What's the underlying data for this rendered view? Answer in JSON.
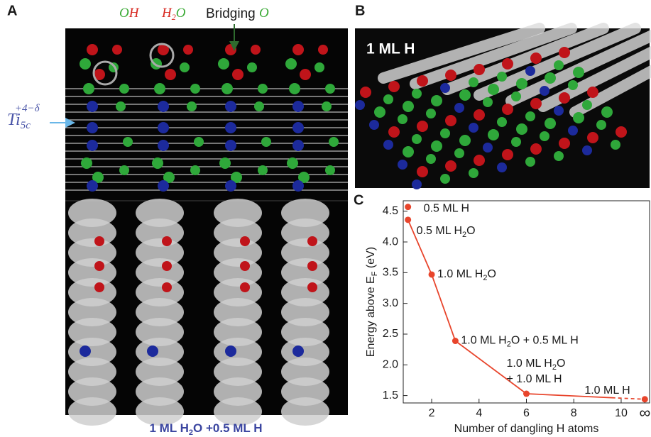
{
  "figure": {
    "panel_a": "A",
    "panel_b": "B",
    "panel_c": "C",
    "oh": [
      "O",
      "H"
    ],
    "h2o": [
      "H",
      "2",
      "O"
    ],
    "bridging": [
      "Bridging ",
      "O"
    ],
    "ti": [
      "Ti",
      "5c",
      "+4−δ"
    ],
    "b_label": "1 ML H",
    "a_caption": [
      "1 ML H",
      "2",
      "O +0.5 ML H"
    ]
  },
  "chart_data": {
    "type": "line",
    "color": "#e8452c",
    "x_label": "Number of dangling H atoms",
    "y_label": [
      "Energy above E",
      "F",
      " (eV)"
    ],
    "xlim": [
      0.8,
      11.2
    ],
    "ylim": [
      1.38,
      4.67
    ],
    "xticks": [
      2,
      4,
      6,
      8,
      10,
      {
        "value": 11,
        "label": "∞"
      }
    ],
    "yticks": [
      1.5,
      {
        "value": 2,
        "label": "2.0"
      },
      2.5,
      {
        "value": 3,
        "label": "3.0"
      },
      3.5,
      {
        "value": 4,
        "label": "4.0"
      },
      4.5
    ],
    "point": {
      "x": 1,
      "value": 4.57,
      "label": [
        [
          "0.5 ML H"
        ]
      ]
    },
    "x": [
      1,
      2,
      3,
      6,
      11
    ],
    "values": [
      4.36,
      3.47,
      2.39,
      1.53,
      1.44
    ],
    "labels": [
      [
        [
          "0.5 ML H",
          "2",
          "O"
        ]
      ],
      [
        [
          "1.0 ML H",
          "2",
          "O"
        ]
      ],
      [
        [
          "1.0 ML H",
          "2",
          "O + 0.5 ML H"
        ]
      ],
      [
        [
          "1.0 ML H",
          "2",
          "O"
        ],
        [
          "+ 1.0 ML H"
        ]
      ],
      [
        [
          "1.0 ML H"
        ]
      ]
    ]
  }
}
